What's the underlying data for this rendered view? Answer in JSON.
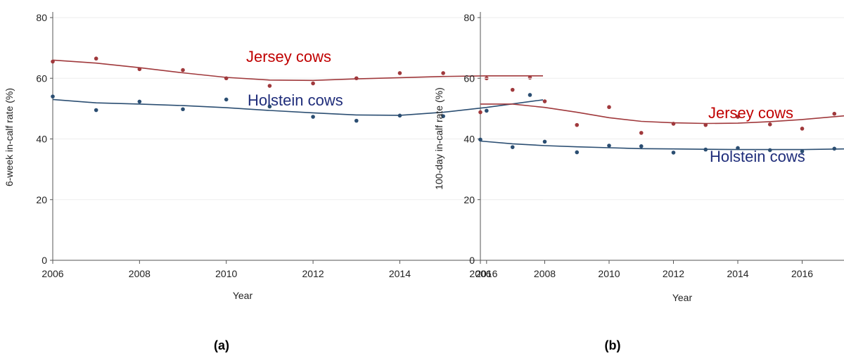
{
  "chart_data": [
    {
      "type": "scatter",
      "panel_label": "(a)",
      "xlabel": "Year",
      "ylabel": "6-week in-calf rate (%)",
      "xlim": [
        2006,
        2017.3
      ],
      "ylim": [
        0,
        80
      ],
      "xticks": [
        2006,
        2008,
        2010,
        2012,
        2014,
        2016
      ],
      "yticks": [
        0,
        20,
        40,
        60,
        80
      ],
      "grid": true,
      "series": [
        {
          "name": "Jersey cows",
          "color": "#a0393c",
          "points": [
            [
              2006,
              65.5
            ],
            [
              2007,
              66.5
            ],
            [
              2008,
              63
            ],
            [
              2009,
              62.7
            ],
            [
              2010,
              60
            ],
            [
              2011,
              57.5
            ],
            [
              2012,
              58.3
            ],
            [
              2013,
              60
            ],
            [
              2014,
              61.7
            ],
            [
              2015,
              61.7
            ],
            [
              2016,
              60
            ],
            [
              2017,
              60.2
            ]
          ],
          "trend": [
            [
              2006,
              66
            ],
            [
              2007,
              65
            ],
            [
              2008,
              63.5
            ],
            [
              2009,
              61.8
            ],
            [
              2010,
              60.3
            ],
            [
              2011,
              59.4
            ],
            [
              2012,
              59.3
            ],
            [
              2013,
              59.8
            ],
            [
              2014,
              60.2
            ],
            [
              2015,
              60.6
            ],
            [
              2016,
              60.8
            ],
            [
              2017.3,
              60.8
            ]
          ]
        },
        {
          "name": "Holstein cows",
          "color": "#2b4e72",
          "points": [
            [
              2006,
              54
            ],
            [
              2007,
              49.5
            ],
            [
              2008,
              52.3
            ],
            [
              2009,
              49.8
            ],
            [
              2010,
              53
            ],
            [
              2011,
              50.7
            ],
            [
              2012,
              47.3
            ],
            [
              2013,
              46
            ],
            [
              2014,
              47.7
            ],
            [
              2015,
              47.5
            ],
            [
              2016,
              49.3
            ],
            [
              2017,
              54.5
            ]
          ],
          "trend": [
            [
              2006,
              53
            ],
            [
              2007,
              51.9
            ],
            [
              2008,
              51.5
            ],
            [
              2009,
              51
            ],
            [
              2010,
              50.3
            ],
            [
              2011,
              49.4
            ],
            [
              2012,
              48.6
            ],
            [
              2013,
              47.9
            ],
            [
              2014,
              47.8
            ],
            [
              2015,
              48.8
            ],
            [
              2016,
              50.4
            ],
            [
              2017.3,
              52.9
            ]
          ]
        }
      ]
    },
    {
      "type": "scatter",
      "panel_label": "(b)",
      "xlabel": "Year",
      "ylabel": "100-day in-calf rate (%)",
      "xlim": [
        2006,
        17.3
      ],
      "ylim": [
        0,
        80
      ],
      "xticks": [
        2006,
        2008,
        2010,
        2012,
        2014,
        2016
      ],
      "yticks": [
        0,
        20,
        40,
        60,
        80
      ],
      "grid": true,
      "series": [
        {
          "name": "Jersey cows",
          "color": "#a0393c",
          "points": [
            [
              2006,
              48.8
            ],
            [
              2007,
              56.2
            ],
            [
              2008,
              52.4
            ],
            [
              2009,
              44.6
            ],
            [
              2010,
              50.5
            ],
            [
              2011,
              42
            ],
            [
              2012,
              45
            ],
            [
              2013,
              44.6
            ],
            [
              2014,
              47.3
            ],
            [
              2015,
              44.8
            ],
            [
              2016,
              43.4
            ],
            [
              2017,
              48.3
            ]
          ],
          "trend": [
            [
              2006,
              51.5
            ],
            [
              2007,
              51.5
            ],
            [
              2008,
              50.4
            ],
            [
              2009,
              48.8
            ],
            [
              2010,
              47
            ],
            [
              2011,
              45.8
            ],
            [
              2012,
              45.3
            ],
            [
              2013,
              45.1
            ],
            [
              2014,
              45.2
            ],
            [
              2015,
              45.7
            ],
            [
              2016,
              46.4
            ],
            [
              2017.3,
              47.6
            ]
          ]
        },
        {
          "name": "Holstein cows",
          "color": "#2b4e72",
          "points": [
            [
              2006,
              39.8
            ],
            [
              2007,
              37.3
            ],
            [
              2008,
              39.1
            ],
            [
              2009,
              35.6
            ],
            [
              2010,
              37.8
            ],
            [
              2011,
              37.6
            ],
            [
              2012,
              35.5
            ],
            [
              2013,
              36.5
            ],
            [
              2014,
              37
            ],
            [
              2015,
              36.3
            ],
            [
              2016,
              35.9
            ],
            [
              2017,
              36.8
            ]
          ],
          "trend": [
            [
              2006,
              39.3
            ],
            [
              2007,
              38.4
            ],
            [
              2008,
              37.8
            ],
            [
              2009,
              37.4
            ],
            [
              2010,
              37.1
            ],
            [
              2011,
              36.8
            ],
            [
              2012,
              36.7
            ],
            [
              2013,
              36.6
            ],
            [
              2014,
              36.5
            ],
            [
              2015,
              36.5
            ],
            [
              2016,
              36.5
            ],
            [
              2017.3,
              36.7
            ]
          ]
        }
      ]
    }
  ]
}
